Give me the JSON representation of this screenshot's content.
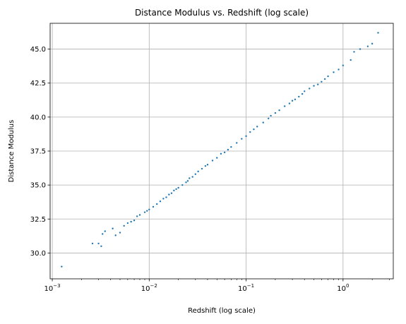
{
  "chart_data": {
    "type": "scatter",
    "title": "Distance Modulus vs. Redshift (log scale)",
    "xlabel": "Redshift (log scale)",
    "ylabel": "Distance Modulus",
    "xscale": "log",
    "xlim": [
      0.00095,
      3.3
    ],
    "ylim": [
      28.1,
      46.9
    ],
    "grid": true,
    "legend": "none",
    "marker_color": "#1f77b4",
    "x_ticks": [
      {
        "value": 0.001,
        "label": "10",
        "exp": "−3"
      },
      {
        "value": 0.01,
        "label": "10",
        "exp": "−2"
      },
      {
        "value": 0.1,
        "label": "10",
        "exp": "−1"
      },
      {
        "value": 1,
        "label": "10",
        "exp": "0"
      }
    ],
    "y_ticks": [
      {
        "value": 30.0,
        "label": "30.0"
      },
      {
        "value": 32.5,
        "label": "32.5"
      },
      {
        "value": 35.0,
        "label": "35.0"
      },
      {
        "value": 37.5,
        "label": "37.5"
      },
      {
        "value": 40.0,
        "label": "40.0"
      },
      {
        "value": 42.5,
        "label": "42.5"
      },
      {
        "value": 45.0,
        "label": "45.0"
      }
    ],
    "x": [
      0.00125,
      0.0026,
      0.003,
      0.0032,
      0.0033,
      0.0035,
      0.0042,
      0.0045,
      0.005,
      0.0055,
      0.006,
      0.0065,
      0.007,
      0.0075,
      0.008,
      0.009,
      0.0095,
      0.01,
      0.011,
      0.012,
      0.013,
      0.014,
      0.015,
      0.016,
      0.017,
      0.018,
      0.019,
      0.02,
      0.022,
      0.024,
      0.025,
      0.026,
      0.028,
      0.03,
      0.032,
      0.035,
      0.038,
      0.04,
      0.045,
      0.05,
      0.055,
      0.06,
      0.065,
      0.07,
      0.08,
      0.09,
      0.1,
      0.11,
      0.12,
      0.13,
      0.15,
      0.17,
      0.18,
      0.2,
      0.22,
      0.25,
      0.28,
      0.3,
      0.32,
      0.35,
      0.38,
      0.4,
      0.45,
      0.5,
      0.55,
      0.6,
      0.65,
      0.7,
      0.8,
      0.9,
      1.0,
      1.2,
      1.3,
      1.5,
      1.8,
      2.0,
      2.3
    ],
    "y": [
      29.0,
      30.7,
      30.7,
      30.5,
      31.4,
      31.6,
      31.8,
      31.3,
      31.5,
      32.0,
      32.2,
      32.3,
      32.4,
      32.7,
      32.8,
      33.0,
      33.1,
      33.2,
      33.4,
      33.6,
      33.8,
      34.0,
      34.1,
      34.3,
      34.4,
      34.6,
      34.7,
      34.8,
      35.0,
      35.2,
      35.3,
      35.5,
      35.6,
      35.8,
      36.0,
      36.2,
      36.4,
      36.5,
      36.8,
      37.0,
      37.3,
      37.4,
      37.6,
      37.8,
      38.1,
      38.4,
      38.6,
      38.9,
      39.1,
      39.3,
      39.6,
      39.9,
      40.1,
      40.3,
      40.5,
      40.8,
      41.0,
      41.2,
      41.3,
      41.5,
      41.7,
      41.9,
      42.1,
      42.3,
      42.4,
      42.6,
      42.8,
      43.0,
      43.3,
      43.5,
      43.8,
      44.2,
      44.8,
      45.0,
      45.2,
      45.4,
      46.2
    ]
  }
}
